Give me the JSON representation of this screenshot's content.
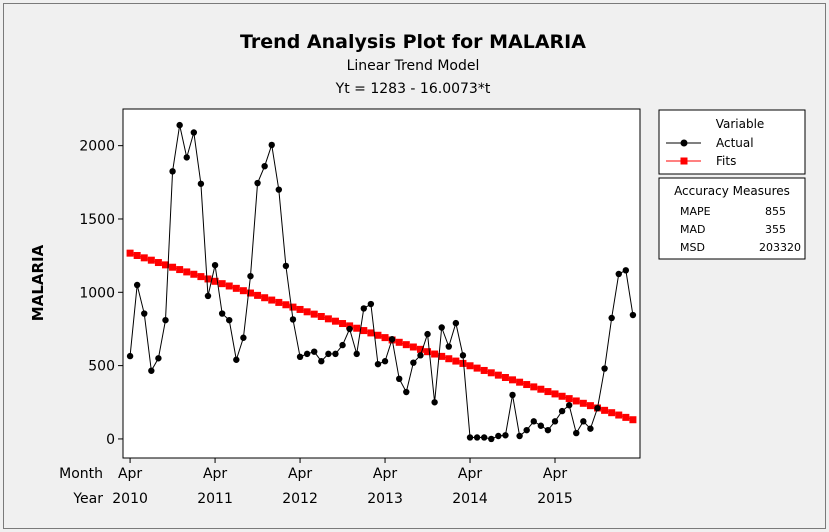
{
  "chart_data": {
    "type": "line",
    "title": "Trend Analysis Plot for MALARIA",
    "subtitle": "Linear Trend Model",
    "equation": "Yt = 1283 - 16.0073*t",
    "ylabel": "MALARIA",
    "ylim": [
      -130,
      2250
    ],
    "y_ticks": [
      "0",
      "500",
      "1000",
      "1500",
      "2000"
    ],
    "x_axis": {
      "row_labels": [
        "Month",
        "Year"
      ],
      "month_ticks": [
        "Apr",
        "Apr",
        "Apr",
        "Apr",
        "Apr",
        "Apr"
      ],
      "year_ticks": [
        "2010",
        "2011",
        "2012",
        "2013",
        "2014",
        "2015"
      ],
      "tick_index": [
        1,
        13,
        25,
        37,
        49,
        61
      ]
    },
    "t": [
      1,
      2,
      3,
      4,
      5,
      6,
      7,
      8,
      9,
      10,
      11,
      12,
      13,
      14,
      15,
      16,
      17,
      18,
      19,
      20,
      21,
      22,
      23,
      24,
      25,
      26,
      27,
      28,
      29,
      30,
      31,
      32,
      33,
      34,
      35,
      36,
      37,
      38,
      39,
      40,
      41,
      42,
      43,
      44,
      45,
      46,
      47,
      48,
      49,
      50,
      51,
      52,
      53,
      54,
      55,
      56,
      57,
      58,
      59,
      60,
      61,
      62,
      63,
      64,
      65,
      66,
      67,
      68,
      69,
      70,
      71,
      72
    ],
    "series": [
      {
        "name": "Actual",
        "color": "#000000",
        "marker": "circle",
        "values": [
          565,
          1050,
          855,
          465,
          550,
          810,
          1825,
          2140,
          1920,
          2090,
          1740,
          975,
          1185,
          855,
          810,
          540,
          690,
          1110,
          1745,
          1860,
          2005,
          1700,
          1180,
          815,
          560,
          580,
          595,
          530,
          580,
          580,
          640,
          750,
          580,
          890,
          920,
          510,
          530,
          680,
          410,
          320,
          520,
          570,
          715,
          250,
          760,
          630,
          790,
          570,
          10,
          10,
          10,
          0,
          20,
          25,
          300,
          20,
          60,
          120,
          90,
          60,
          120,
          190,
          230,
          40,
          120,
          70,
          210,
          480,
          825,
          1125,
          1150,
          845
        ]
      },
      {
        "name": "Fits",
        "color": "#ff0000",
        "marker": "square",
        "values": [
          1267,
          1251,
          1235,
          1219,
          1203,
          1187,
          1171,
          1155,
          1139,
          1123,
          1107,
          1091,
          1075,
          1059,
          1043,
          1027,
          1011,
          995,
          979,
          963,
          947,
          931,
          915,
          899,
          883,
          867,
          851,
          835,
          819,
          803,
          787,
          771,
          755,
          739,
          723,
          707,
          691,
          675,
          659,
          643,
          627,
          611,
          595,
          579,
          563,
          547,
          531,
          515,
          499,
          483,
          467,
          451,
          435,
          419,
          403,
          387,
          371,
          355,
          339,
          323,
          307,
          291,
          275,
          259,
          243,
          227,
          211,
          195,
          179,
          163,
          147,
          131
        ]
      }
    ],
    "legend": {
      "title": "Variable",
      "placement": "right"
    },
    "accuracy": {
      "title": "Accuracy Measures",
      "rows": [
        {
          "label": "MAPE",
          "value": "855"
        },
        {
          "label": "MAD",
          "value": "355"
        },
        {
          "label": "MSD",
          "value": "203320"
        }
      ]
    },
    "grid": false
  }
}
